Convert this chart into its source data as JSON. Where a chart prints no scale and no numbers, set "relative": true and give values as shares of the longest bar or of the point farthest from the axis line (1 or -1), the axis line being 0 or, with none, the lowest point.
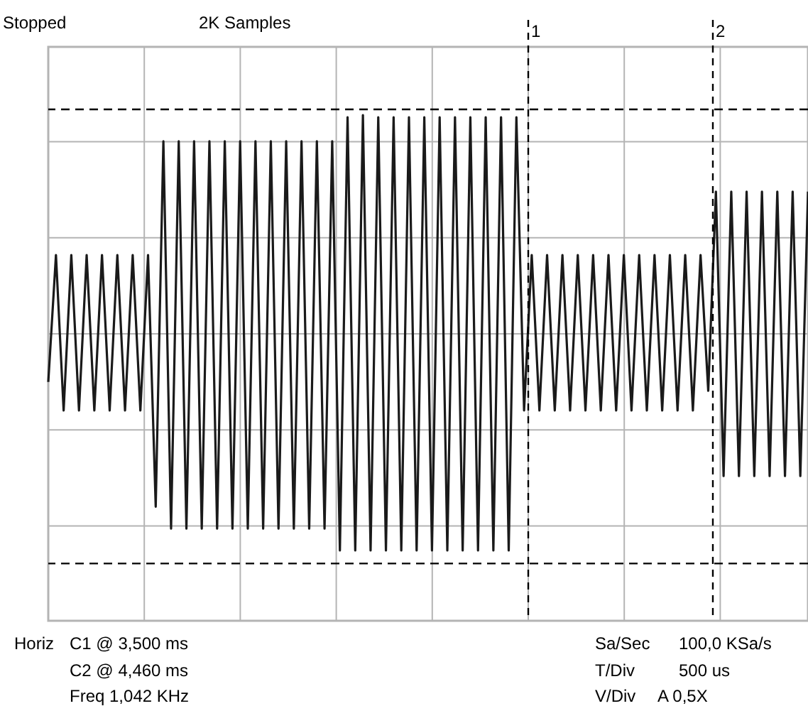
{
  "chart_data": {
    "type": "line",
    "relative": true,
    "categories": [
      null,
      null,
      null,
      null,
      null,
      null,
      null,
      null,
      null,
      null,
      null,
      null,
      null,
      null,
      null,
      null,
      null,
      null,
      null,
      null,
      null,
      null,
      null,
      null,
      null,
      null,
      null,
      null,
      null,
      null,
      null,
      null,
      null,
      null,
      null,
      null,
      null,
      null,
      null,
      null,
      null,
      null,
      null,
      null,
      null,
      null,
      null,
      null,
      null,
      null,
      null,
      null,
      null,
      null,
      null,
      null,
      null,
      null,
      null,
      null,
      null,
      null,
      null,
      null,
      null,
      null,
      null,
      null,
      null,
      null,
      null,
      null,
      null,
      null,
      null,
      null,
      null,
      null,
      null,
      null,
      null,
      null,
      null,
      null,
      null,
      null,
      null,
      null,
      null,
      null,
      null,
      null,
      null,
      null,
      null,
      null,
      null,
      null,
      null,
      null
    ],
    "series": [
      {
        "color": "#1a1a1a",
        "values": [
          -0.22,
          0.36,
          -0.35,
          0.36,
          -0.35,
          0.36,
          -0.35,
          0.36,
          -0.35,
          0.36,
          -0.35,
          0.36,
          -0.35,
          0.36,
          -0.79,
          0.88,
          -0.89,
          0.88,
          -0.89,
          0.88,
          -0.89,
          0.88,
          -0.89,
          0.88,
          -0.89,
          0.88,
          -0.89,
          0.88,
          -0.89,
          0.88,
          -0.89,
          0.88,
          -0.89,
          0.88,
          -0.89,
          0.88,
          -0.89,
          0.88,
          -0.99,
          0.99,
          -0.99,
          1.0,
          -0.99,
          0.99,
          -0.99,
          0.99,
          -0.99,
          0.99,
          -0.99,
          0.99,
          -0.99,
          0.99,
          -0.99,
          0.99,
          -0.99,
          0.99,
          -0.99,
          0.99,
          -0.99,
          0.99,
          -0.99,
          0.99,
          -0.35,
          0.36,
          -0.35,
          0.36,
          -0.35,
          0.36,
          -0.35,
          0.36,
          -0.35,
          0.36,
          -0.35,
          0.36,
          -0.35,
          0.36,
          -0.35,
          0.36,
          -0.35,
          0.36,
          -0.35,
          0.36,
          -0.35,
          0.36,
          -0.35,
          0.36,
          -0.26,
          0.65,
          -0.65,
          0.65,
          -0.65,
          0.65,
          -0.65,
          0.65,
          -0.65,
          0.65,
          -0.65,
          0.65,
          -0.65,
          0.65
        ]
      }
    ],
    "grid": true,
    "line_style": "solid",
    "ref_lines": [
      {
        "axis": "y",
        "value": 1.026,
        "color": "#000000",
        "line_style": "dashed"
      },
      {
        "axis": "y",
        "value": -1.05,
        "color": "#000000",
        "line_style": "dashed"
      }
    ],
    "annotations": [
      "Stopped",
      "2K Samples",
      "1",
      "2",
      "Horiz",
      "C1 @ 3,500 ms",
      "C2 @ 4,460 ms",
      "Freq 1,042 KHz",
      "Sa/Sec",
      "100,0 KSa/s",
      "T/Div",
      "500 us",
      "V/Div",
      "A 0,5X"
    ]
  }
}
